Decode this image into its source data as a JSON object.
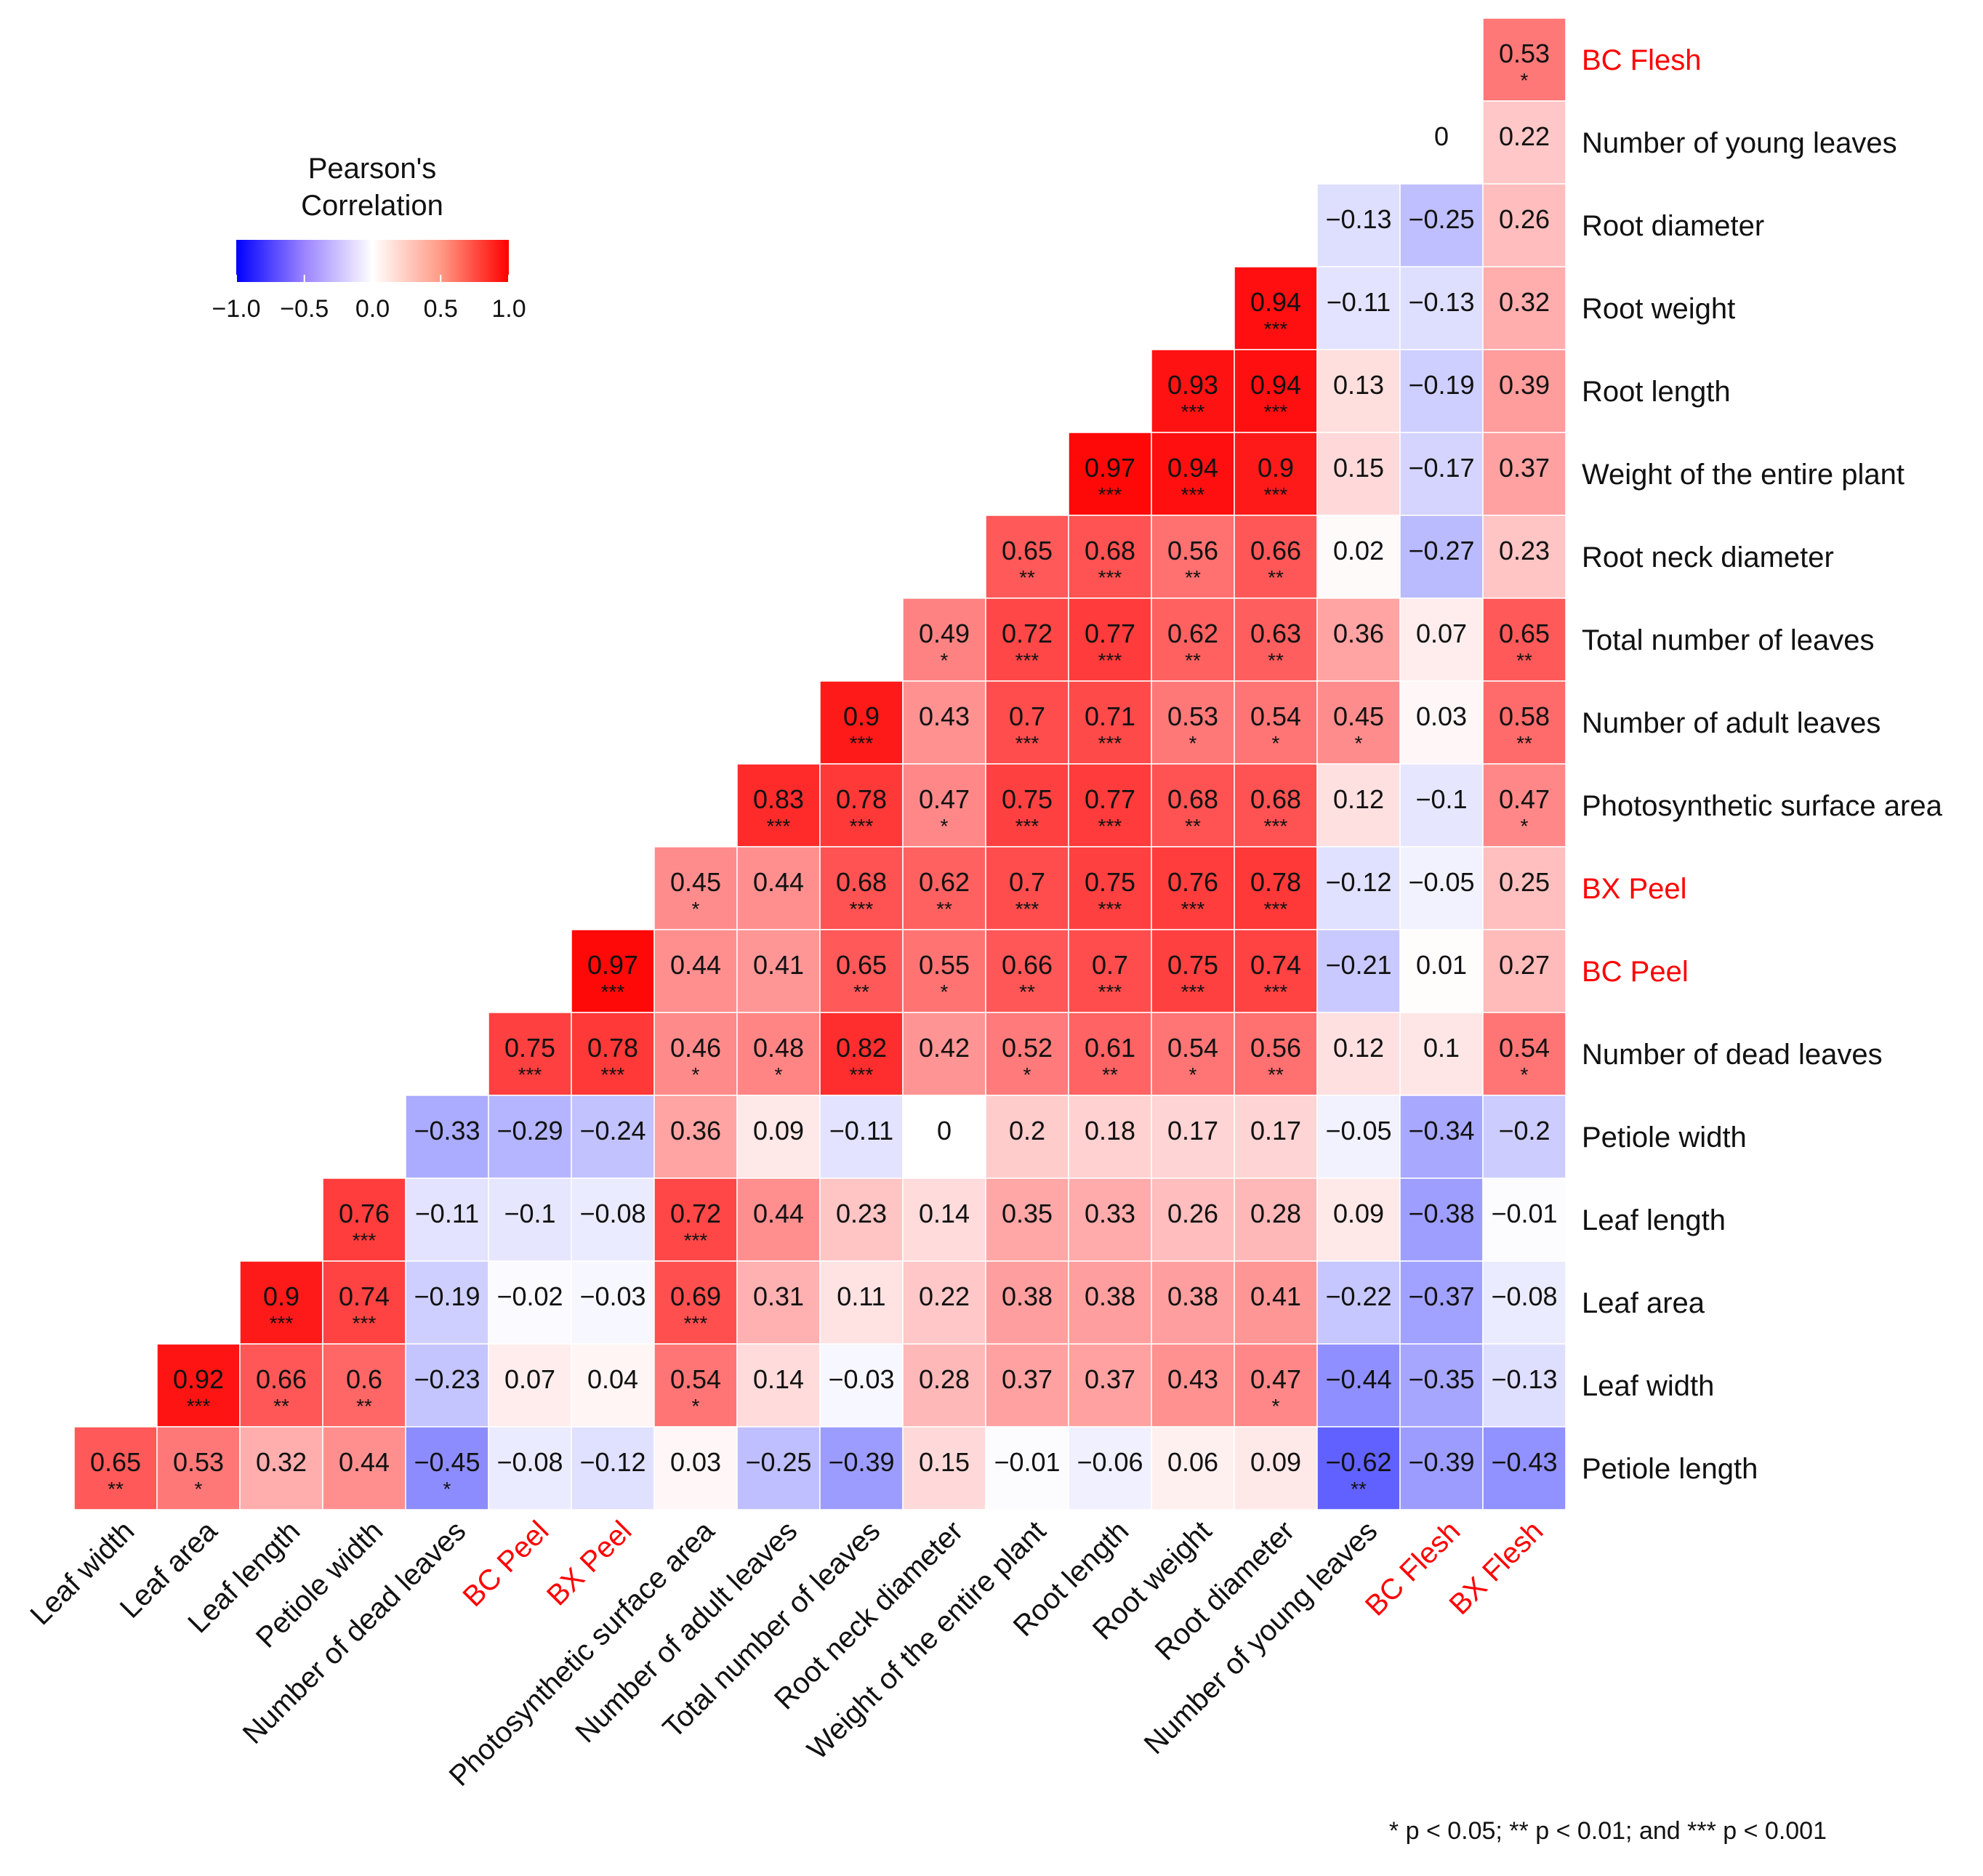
{
  "chart_data": {
    "type": "heatmap",
    "title": "",
    "legend": {
      "title_line1": "Pearson's",
      "title_line2": "Correlation",
      "ticks": [
        "−1.0",
        "−0.5",
        "0.0",
        "0.5",
        "1.0"
      ],
      "range": [
        -1.0,
        1.0
      ],
      "low_color": "#0000ff",
      "mid_color": "#ffffff",
      "high_color": "#ff0000",
      "placement": "top-left"
    },
    "x_labels": [
      "Leaf width",
      "Leaf area",
      "Leaf length",
      "Petiole width",
      "Number of dead leaves",
      "BC Peel",
      "BX Peel",
      "Photosynthetic surface area",
      "Number of adult leaves",
      "Total number of leaves",
      "Root neck diameter",
      "Weight of the entire plant",
      "Root length",
      "Root weight",
      "Root diameter",
      "Number of young leaves",
      "BC Flesh",
      "BX Flesh"
    ],
    "y_labels": [
      "BC Flesh",
      "Number of young leaves",
      "Root diameter",
      "Root weight",
      "Root length",
      "Weight of the entire plant",
      "Root neck diameter",
      "Total number of leaves",
      "Number of adult leaves",
      "Photosynthetic surface area",
      "BX Peel",
      "BC Peel",
      "Number of dead leaves",
      "Petiole width",
      "Leaf length",
      "Leaf area",
      "Leaf width",
      "Petiole length"
    ],
    "highlight_labels": [
      "BC Flesh",
      "BX Flesh",
      "BC Peel",
      "BX Peel"
    ],
    "highlight_color": "#ff0000",
    "rows": [
      {
        "label": "BC Flesh",
        "values": [
          0.53
        ],
        "sig": [
          "*"
        ]
      },
      {
        "label": "Number of young leaves",
        "values": [
          0,
          0.22
        ],
        "sig": [
          "",
          ""
        ]
      },
      {
        "label": "Root diameter",
        "values": [
          -0.13,
          -0.25,
          0.26
        ],
        "sig": [
          "",
          "",
          ""
        ]
      },
      {
        "label": "Root weight",
        "values": [
          0.94,
          -0.11,
          -0.13,
          0.32
        ],
        "sig": [
          "***",
          "",
          "",
          ""
        ]
      },
      {
        "label": "Root length",
        "values": [
          0.93,
          0.94,
          0.13,
          -0.19,
          0.39
        ],
        "sig": [
          "***",
          "***",
          "",
          "",
          ""
        ]
      },
      {
        "label": "Weight of the entire plant",
        "values": [
          0.97,
          0.94,
          0.9,
          0.15,
          -0.17,
          0.37
        ],
        "sig": [
          "***",
          "***",
          "***",
          "",
          "",
          ""
        ]
      },
      {
        "label": "Root neck diameter",
        "values": [
          0.65,
          0.68,
          0.56,
          0.66,
          0.02,
          -0.27,
          0.23
        ],
        "sig": [
          "**",
          "***",
          "**",
          "**",
          "",
          "",
          ""
        ]
      },
      {
        "label": "Total number of leaves",
        "values": [
          0.49,
          0.72,
          0.77,
          0.62,
          0.63,
          0.36,
          0.07,
          0.65
        ],
        "sig": [
          "*",
          "***",
          "***",
          "**",
          "**",
          "",
          "",
          "**"
        ]
      },
      {
        "label": "Number of adult leaves",
        "values": [
          0.9,
          0.43,
          0.7,
          0.71,
          0.53,
          0.54,
          0.45,
          0.03,
          0.58
        ],
        "sig": [
          "***",
          "",
          "***",
          "***",
          "*",
          "*",
          "*",
          "",
          "**"
        ]
      },
      {
        "label": "Photosynthetic surface area",
        "values": [
          0.83,
          0.78,
          0.47,
          0.75,
          0.77,
          0.68,
          0.68,
          0.12,
          -0.1,
          0.47
        ],
        "sig": [
          "***",
          "***",
          "*",
          "***",
          "***",
          "**",
          "***",
          "",
          "",
          "*"
        ]
      },
      {
        "label": "BX Peel",
        "values": [
          0.45,
          0.44,
          0.68,
          0.62,
          0.7,
          0.75,
          0.76,
          0.78,
          -0.12,
          -0.05,
          0.25
        ],
        "sig": [
          "*",
          "",
          "***",
          "**",
          "***",
          "***",
          "***",
          "***",
          "",
          "",
          ""
        ]
      },
      {
        "label": "BC Peel",
        "values": [
          0.97,
          0.44,
          0.41,
          0.65,
          0.55,
          0.66,
          0.7,
          0.75,
          0.74,
          -0.21,
          0.01,
          0.27
        ],
        "sig": [
          "***",
          "",
          "",
          "**",
          "*",
          "**",
          "***",
          "***",
          "***",
          "",
          "",
          ""
        ]
      },
      {
        "label": "Number of dead leaves",
        "values": [
          0.75,
          0.78,
          0.46,
          0.48,
          0.82,
          0.42,
          0.52,
          0.61,
          0.54,
          0.56,
          0.12,
          0.1,
          0.54
        ],
        "sig": [
          "***",
          "***",
          "*",
          "*",
          "***",
          "",
          "*",
          "**",
          "*",
          "**",
          "",
          "",
          "*"
        ]
      },
      {
        "label": "Petiole width",
        "values": [
          -0.33,
          -0.29,
          -0.24,
          0.36,
          0.09,
          -0.11,
          0,
          0.2,
          0.18,
          0.17,
          0.17,
          -0.05,
          -0.34,
          -0.2
        ],
        "sig": [
          "",
          "",
          "",
          "",
          "",
          "",
          "",
          "",
          "",
          "",
          "",
          "",
          "",
          ""
        ]
      },
      {
        "label": "Leaf length",
        "values": [
          0.76,
          -0.11,
          -0.1,
          -0.08,
          0.72,
          0.44,
          0.23,
          0.14,
          0.35,
          0.33,
          0.26,
          0.28,
          0.09,
          -0.38,
          -0.01
        ],
        "sig": [
          "***",
          "",
          "",
          "",
          "***",
          "",
          "",
          "",
          "",
          "",
          "",
          "",
          "",
          "",
          ""
        ]
      },
      {
        "label": "Leaf area",
        "values": [
          0.9,
          0.74,
          -0.19,
          -0.02,
          -0.03,
          0.69,
          0.31,
          0.11,
          0.22,
          0.38,
          0.38,
          0.38,
          0.41,
          -0.22,
          -0.37,
          -0.08
        ],
        "sig": [
          "***",
          "***",
          "",
          "",
          "",
          "***",
          "",
          "",
          "",
          "",
          "",
          "",
          "",
          "",
          "",
          ""
        ]
      },
      {
        "label": "Leaf width",
        "values": [
          0.92,
          0.66,
          0.6,
          -0.23,
          0.07,
          0.04,
          0.54,
          0.14,
          -0.03,
          0.28,
          0.37,
          0.37,
          0.43,
          0.47,
          -0.44,
          -0.35,
          -0.13
        ],
        "sig": [
          "***",
          "**",
          "**",
          "",
          "",
          "",
          "*",
          "",
          "",
          "",
          "",
          "",
          "",
          "*",
          "",
          "",
          ""
        ]
      },
      {
        "label": "Petiole length",
        "values": [
          0.65,
          0.53,
          0.32,
          0.44,
          -0.45,
          -0.08,
          -0.12,
          0.03,
          -0.25,
          -0.39,
          0.15,
          -0.01,
          -0.06,
          0.06,
          0.09,
          -0.62,
          -0.39,
          -0.43
        ],
        "sig": [
          "**",
          "*",
          "",
          "",
          "*",
          "",
          "",
          "",
          "",
          "",
          "",
          "",
          "",
          "",
          "",
          "**",
          "",
          ""
        ]
      }
    ],
    "footnote": "* p < 0.05; ** p < 0.01; and *** p < 0.001"
  }
}
